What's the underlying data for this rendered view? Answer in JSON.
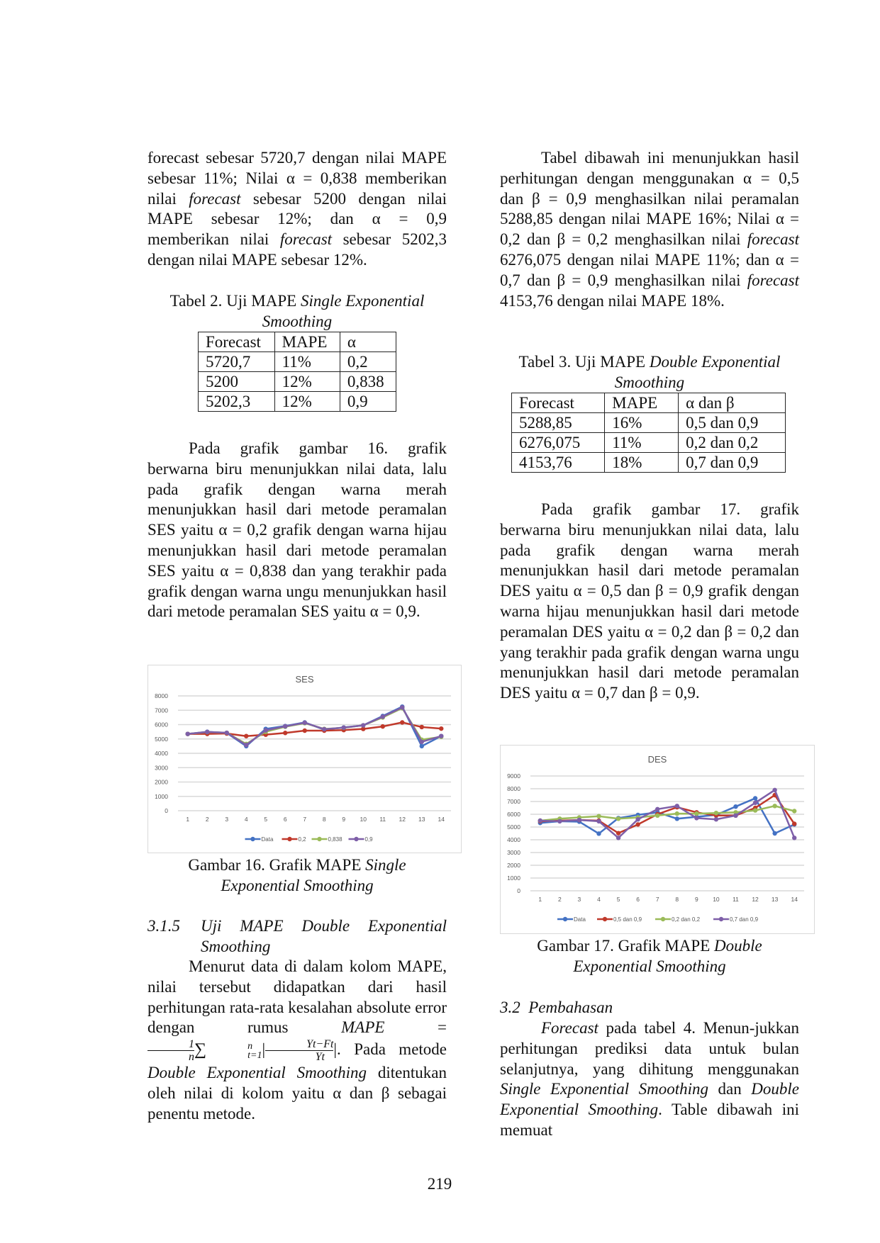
{
  "left": {
    "para1": [
      {
        "t": "forecast sebesar 5720,7 dengan nilai MAPE sebesar 11%; Nilai α = 0,838 memberikan nilai "
      },
      {
        "t": "forecast",
        "i": true
      },
      {
        "t": " sebesar 5200 dengan nilai MAPE sebesar 12%; dan α = 0,9 memberikan nilai "
      },
      {
        "t": "forecast",
        "i": true
      },
      {
        "t": " sebesar 5202,3 dengan nilai MAPE sebesar 12%."
      }
    ],
    "table2_caption": [
      {
        "t": "Tabel 2. Uji MAPE "
      },
      {
        "t": "Single Exponential Smoothing",
        "i": true
      }
    ],
    "table2": {
      "headers": [
        "Forecast",
        "MAPE",
        "α"
      ],
      "rows": [
        [
          "5720,7",
          "11%",
          "0,2"
        ],
        [
          "5200",
          "12%",
          "0,838"
        ],
        [
          "5202,3",
          "12%",
          "0,9"
        ]
      ]
    },
    "para2": [
      {
        "t": "Pada grafik gambar 16. grafik berwarna biru menunjukkan nilai data, lalu pada grafik dengan warna merah menunjukkan hasil dari metode peramalan SES yaitu α = 0,2 grafik dengan warna hijau menunjukkan hasil dari metode peramalan SES yaitu α = 0,838 dan yang terakhir pada grafik dengan warna ungu menunjukkan hasil dari metode peramalan SES yaitu α = 0,9."
      }
    ],
    "figure16_caption": [
      {
        "t": "Gambar 16. Grafik MAPE "
      },
      {
        "t": "Single Exponential Smoothing",
        "i": true
      }
    ],
    "section_number": "3.1.5",
    "section_title": "Uji MAPE Double Exponential Smoothing",
    "para3_a": "Menurut data di dalam kolom MAPE, nilai tersebut didapatkan dari hasil perhitungan rata-rata kesalahan absolute error dengan rumus ",
    "para3_mape": "MAPE",
    "para3_eq": " = ",
    "formula": {
      "one": "1",
      "n": "n",
      "sum": "∑",
      "sub": "t=1",
      "sup": "n",
      "num": "Yt−Ft",
      "den": "Yt",
      "bar": "|"
    },
    "para3_b": [
      {
        "t": ". Pada metode "
      },
      {
        "t": "Double Exponential Smoothing",
        "i": true
      },
      {
        "t": " ditentukan oleh nilai di kolom yaitu α dan β sebagai penentu metode."
      }
    ]
  },
  "right": {
    "para1": [
      {
        "t": "Tabel dibawah ini menunjukkan hasil perhitungan dengan menggunakan α = 0,5 dan β = 0,9 menghasilkan nilai peramalan 5288,85 dengan nilai MAPE 16%; Nilai α = 0,2 dan β = 0,2 menghasilkan nilai "
      },
      {
        "t": "forecast",
        "i": true
      },
      {
        "t": " 6276,075 dengan nilai MAPE 11%; dan α = 0,7 dan β = 0,9 menghasilkan nilai "
      },
      {
        "t": "forecast",
        "i": true
      },
      {
        "t": " 4153,76 dengan nilai MAPE 18%."
      }
    ],
    "table3_caption": [
      {
        "t": "Tabel 3. Uji MAPE "
      },
      {
        "t": "Double Exponential Smoothing",
        "i": true
      }
    ],
    "table3": {
      "headers": [
        "Forecast",
        "MAPE",
        "α dan β"
      ],
      "rows": [
        [
          "5288,85",
          "16%",
          "0,5 dan 0,9"
        ],
        [
          "6276,075",
          "11%",
          "0,2 dan 0,2"
        ],
        [
          "4153,76",
          "18%",
          "0,7 dan 0,9"
        ]
      ]
    },
    "para2": [
      {
        "t": "Pada grafik gambar 17. grafik berwarna biru menunjukkan nilai data, lalu pada grafik dengan warna merah menunjukkan hasil dari metode peramalan DES yaitu α = 0,5 dan β = 0,9 grafik dengan warna hijau menunjukkan hasil dari metode peramalan DES yaitu α = 0,2 dan β = 0,2 dan yang terakhir pada grafik dengan warna ungu menunjukkan hasil dari metode peramalan DES yaitu α = 0,7 dan β = 0,9."
      }
    ],
    "figure17_caption": [
      {
        "t": "Gambar 17. Grafik MAPE "
      },
      {
        "t": "Double Exponential Smoothing",
        "i": true
      }
    ],
    "section_title": "3.2  Pembahasan",
    "para3": [
      {
        "t": "Forecast",
        "i": true
      },
      {
        "t": " pada tabel 4. Menun-jukkan perhitungan prediksi data untuk bulan selanjutnya, yang dihitung menggunakan "
      },
      {
        "t": "Single Exponential Smoothing",
        "i": true
      },
      {
        "t": " dan "
      },
      {
        "t": "Double Exponential Smoothing",
        "i": true
      },
      {
        "t": ". Table dibawah ini memuat"
      }
    ]
  },
  "page_number": "219",
  "chart_data": [
    {
      "type": "line",
      "title": "SES",
      "x": [
        1,
        2,
        3,
        4,
        5,
        6,
        7,
        8,
        9,
        10,
        11,
        12,
        13,
        14
      ],
      "ylim": [
        0,
        8000
      ],
      "yticks": [
        0,
        1000,
        2000,
        3000,
        4000,
        5000,
        6000,
        7000,
        8000
      ],
      "grid": true,
      "legend": "bottom",
      "series": [
        {
          "name": "Data",
          "color": "#4472c4",
          "values": [
            5350,
            5500,
            5420,
            4500,
            5700,
            5900,
            6150,
            5650,
            5800,
            5950,
            6600,
            7250,
            4500,
            5200
          ]
        },
        {
          "name": "0,2",
          "color": "#c0392b",
          "values": [
            5350,
            5350,
            5380,
            5200,
            5300,
            5420,
            5580,
            5580,
            5620,
            5700,
            5870,
            6150,
            5830,
            5720
          ]
        },
        {
          "name": "0,838",
          "color": "#9bbb59",
          "values": [
            5350,
            5480,
            5430,
            4650,
            5500,
            5850,
            6100,
            5700,
            5780,
            5950,
            6500,
            7150,
            4950,
            5150
          ]
        },
        {
          "name": "0,9",
          "color": "#7e5fa8",
          "values": [
            5350,
            5490,
            5430,
            4580,
            5600,
            5880,
            6130,
            5680,
            5790,
            5950,
            6550,
            7200,
            4800,
            5200
          ]
        }
      ]
    },
    {
      "type": "line",
      "title": "DES",
      "x": [
        1,
        2,
        3,
        4,
        5,
        6,
        7,
        8,
        9,
        10,
        11,
        12,
        13,
        14
      ],
      "ylim": [
        0,
        9000
      ],
      "yticks": [
        0,
        1000,
        2000,
        3000,
        4000,
        5000,
        6000,
        7000,
        8000,
        9000
      ],
      "grid": true,
      "legend": "bottom",
      "series": [
        {
          "name": "Data",
          "color": "#4472c4",
          "values": [
            5320,
            5450,
            5420,
            4480,
            5700,
            5950,
            6150,
            5650,
            5800,
            5950,
            6600,
            7250,
            4500,
            5200
          ]
        },
        {
          "name": "0,5 dan 0,9",
          "color": "#c0392b",
          "values": [
            5450,
            5500,
            5550,
            5500,
            4520,
            5200,
            6000,
            6550,
            6150,
            5900,
            5900,
            6500,
            7500,
            5250
          ]
        },
        {
          "name": "0,2 dan 0,2",
          "color": "#9bbb59",
          "values": [
            5500,
            5650,
            5750,
            5850,
            5650,
            5750,
            5900,
            6050,
            6050,
            6100,
            6150,
            6300,
            6650,
            6250
          ]
        },
        {
          "name": "0,7 dan 0,9",
          "color": "#7e5fa8",
          "values": [
            5500,
            5450,
            5550,
            5450,
            4150,
            5600,
            6400,
            6650,
            5700,
            5600,
            5900,
            6900,
            7900,
            4150
          ]
        }
      ]
    }
  ]
}
